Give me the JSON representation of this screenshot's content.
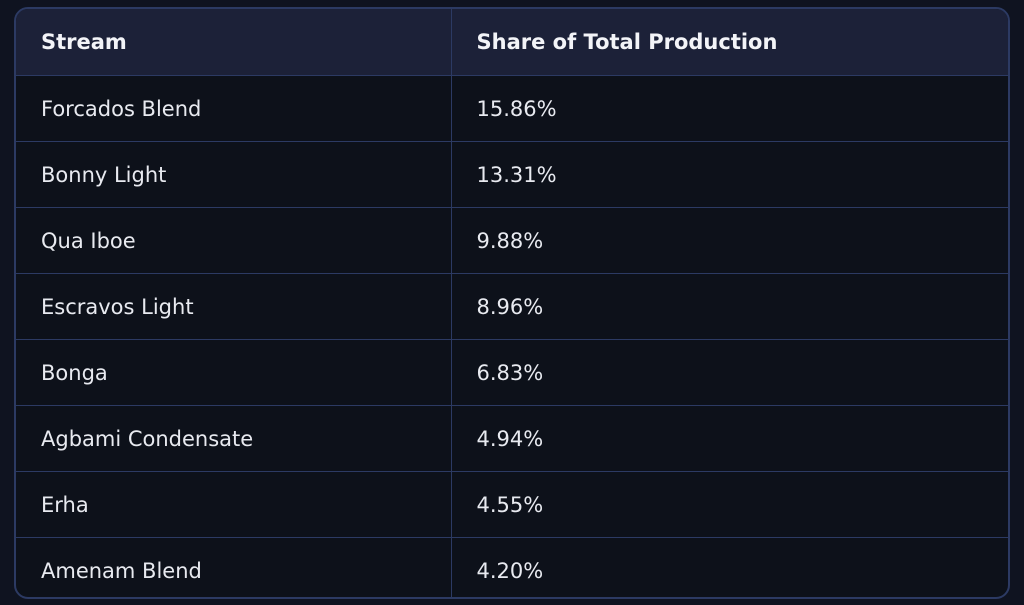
{
  "table": {
    "headers": [
      "Stream",
      "Share of Total Production"
    ],
    "rows": [
      [
        "Forcados Blend",
        "15.86%"
      ],
      [
        "Bonny Light",
        "13.31%"
      ],
      [
        "Qua Iboe",
        "9.88%"
      ],
      [
        "Escravos Light",
        "8.96%"
      ],
      [
        "Bonga",
        "6.83%"
      ],
      [
        "Agbami Condensate",
        "4.94%"
      ],
      [
        "Erha",
        "4.55%"
      ],
      [
        "Amenam Blend",
        "4.20%"
      ]
    ]
  }
}
